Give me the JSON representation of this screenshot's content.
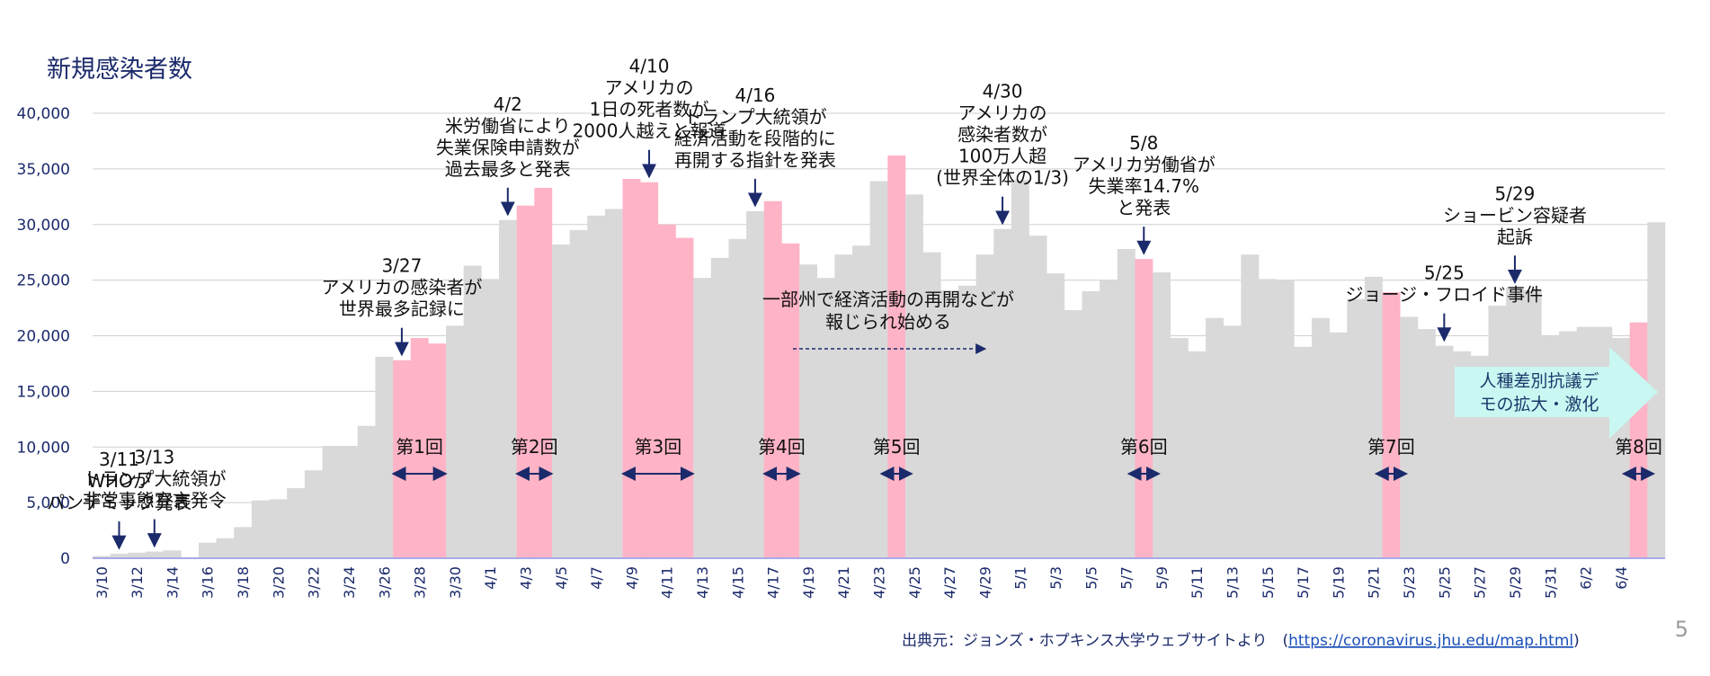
{
  "chart_data": {
    "type": "bar",
    "title": "新規感染者数",
    "ylim": [
      0,
      40000
    ],
    "yticks": [
      "0",
      "5,000",
      "10,000",
      "15,000",
      "20,000",
      "25,000",
      "30,000",
      "35,000",
      "40,000"
    ],
    "grid": true,
    "x_start": "3/10",
    "xticks": [
      "3/10",
      "3/12",
      "3/14",
      "3/16",
      "3/18",
      "3/20",
      "3/22",
      "3/24",
      "3/26",
      "3/28",
      "3/30",
      "4/1",
      "4/3",
      "4/5",
      "4/7",
      "4/9",
      "4/11",
      "4/13",
      "4/15",
      "4/17",
      "4/19",
      "4/21",
      "4/23",
      "4/25",
      "4/27",
      "4/29",
      "5/1",
      "5/3",
      "5/5",
      "5/7",
      "5/9",
      "5/11",
      "5/13",
      "5/15",
      "5/17",
      "5/19",
      "5/21",
      "5/23",
      "5/25",
      "5/27",
      "5/29",
      "5/31",
      "6/2",
      "6/4"
    ],
    "values": [
      200,
      400,
      500,
      600,
      700,
      0,
      1400,
      1800,
      2800,
      5200,
      5300,
      6300,
      7900,
      10100,
      10100,
      11900,
      18100,
      17800,
      19800,
      19300,
      20900,
      26300,
      25100,
      30400,
      31700,
      33300,
      28200,
      29500,
      30800,
      31400,
      34100,
      33800,
      30000,
      28800,
      25200,
      27000,
      28700,
      31200,
      32100,
      28300,
      26400,
      25200,
      27300,
      28100,
      33900,
      36200,
      32700,
      27500,
      24100,
      24500,
      27300,
      29600,
      34000,
      29000,
      25600,
      22300,
      24000,
      25000,
      27800,
      26900,
      25700,
      19800,
      18600,
      21600,
      20900,
      27300,
      25100,
      25000,
      19000,
      21600,
      20300,
      23300,
      25300,
      23900,
      21700,
      20600,
      19100,
      18600,
      18200,
      22700,
      24300,
      24100,
      20000,
      20400,
      20800,
      20800,
      19800,
      21200,
      30200
    ],
    "highlight_periods": [
      {
        "label": "第1回",
        "start": "3/27",
        "end": "3/29"
      },
      {
        "label": "第2回",
        "start": "4/3",
        "end": "4/4"
      },
      {
        "label": "第3回",
        "start": "4/9",
        "end": "4/12"
      },
      {
        "label": "第4回",
        "start": "4/17",
        "end": "4/18"
      },
      {
        "label": "第5回",
        "start": "4/24",
        "end": "4/24"
      },
      {
        "label": "第6回",
        "start": "5/8",
        "end": "5/8"
      },
      {
        "label": "第7回",
        "start": "5/22",
        "end": "5/22"
      },
      {
        "label": "第8回",
        "start": "6/5",
        "end": "6/5"
      }
    ],
    "colors": {
      "bar": "#d9d9d9",
      "highlight": "#ffb3c6",
      "arrow": "#1b2a6b",
      "protest": "#c9f7f2",
      "grid": "#cfcfcf"
    },
    "annotations": [
      {
        "date": "3/11",
        "lines": [
          "3/11",
          "WHOが",
          "パンデミック発表"
        ]
      },
      {
        "date": "3/13",
        "lines": [
          "3/13",
          "トランプ大統領が",
          "非常事態宣言発令"
        ]
      },
      {
        "date": "3/27",
        "lines": [
          "3/27",
          "アメリカの感染者が",
          "世界最多記録に"
        ]
      },
      {
        "date": "4/2",
        "lines": [
          "4/2",
          "米労働省により",
          "失業保険申請数が",
          "過去最多と発表"
        ]
      },
      {
        "date": "4/10",
        "lines": [
          "4/10",
          "アメリカの",
          "1日の死者数が",
          "2000人越えと報道"
        ]
      },
      {
        "date": "4/16",
        "lines": [
          "4/16",
          "トランプ大統領が",
          "経済活動を段階的に",
          "再開する指針を発表"
        ]
      },
      {
        "date": "4/30",
        "lines": [
          "4/30",
          "アメリカの",
          "感染者数が",
          "100万人超",
          "(世界全体の1/3)"
        ]
      },
      {
        "date": "5/8",
        "lines": [
          "5/8",
          "アメリカ労働省が",
          "失業率14.7%",
          "と発表"
        ]
      },
      {
        "date": "5/25",
        "lines": [
          "5/25",
          "ジョージ・フロイド事件"
        ]
      },
      {
        "date": "5/29",
        "lines": [
          "5/29",
          "ショービン容疑者",
          "起訴"
        ]
      }
    ],
    "reopening_note": [
      "一部州で経済活動の再開などが",
      "報じられ始める"
    ],
    "protest_label": [
      "人種差別抗議デ",
      "モの拡大・激化"
    ]
  },
  "source": {
    "prefix": "出典元：ジョンズ・ホプキンス大学ウェブサイトより　(",
    "url": "https://coronavirus.jhu.edu/map.html",
    "suffix": ")"
  },
  "page_number": "5"
}
